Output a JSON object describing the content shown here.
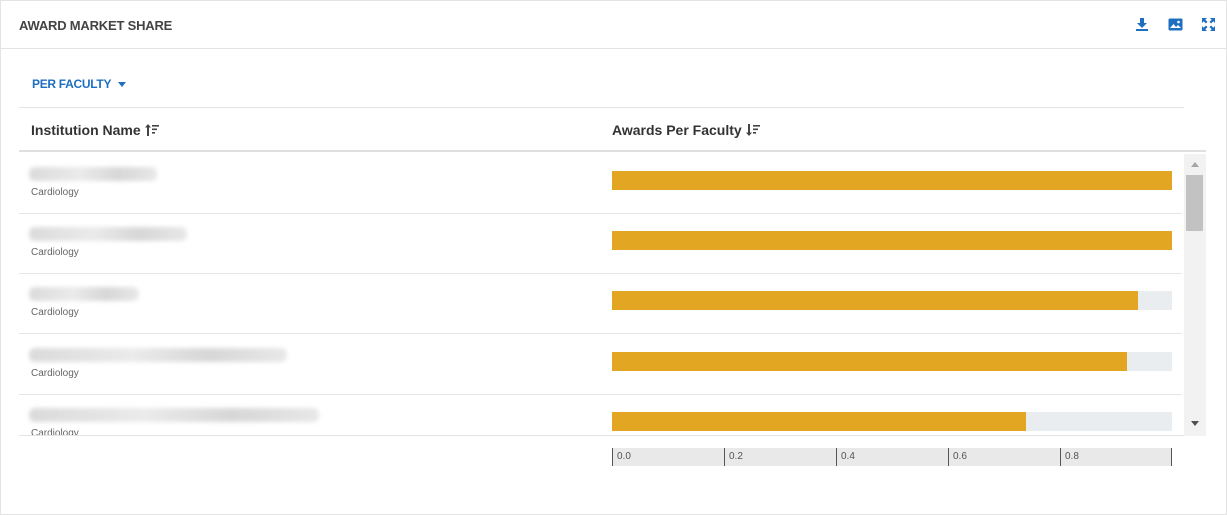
{
  "header": {
    "title": "AWARD MARKET SHARE",
    "icons": [
      "download-icon",
      "image-icon",
      "expand-icon"
    ],
    "icon_color": "#1f6fc0"
  },
  "filter": {
    "label": "PER FACULTY",
    "icon": "caret-down-icon"
  },
  "table": {
    "columns": {
      "name": "Institution Name",
      "awards": "Awards Per Faculty"
    },
    "sort_icons": [
      "sort-ascending-icon",
      "sort-descending-icon"
    ],
    "rows": [
      {
        "institution": "",
        "department": "Cardiology",
        "value_fraction": 1.0
      },
      {
        "institution": "",
        "department": "Cardiology",
        "value_fraction": 1.0
      },
      {
        "institution": "",
        "department": "Cardiology",
        "value_fraction": 0.94
      },
      {
        "institution": "",
        "department": "Cardiology",
        "value_fraction": 0.92
      },
      {
        "institution": "",
        "department": "Cardiology",
        "value_fraction": 0.74
      }
    ],
    "bar_color": "#e2a622",
    "track_color": "#e9edf0"
  },
  "axis": {
    "ticks": [
      "0.0",
      "0.2",
      "0.4",
      "0.6",
      "0.8"
    ]
  }
}
